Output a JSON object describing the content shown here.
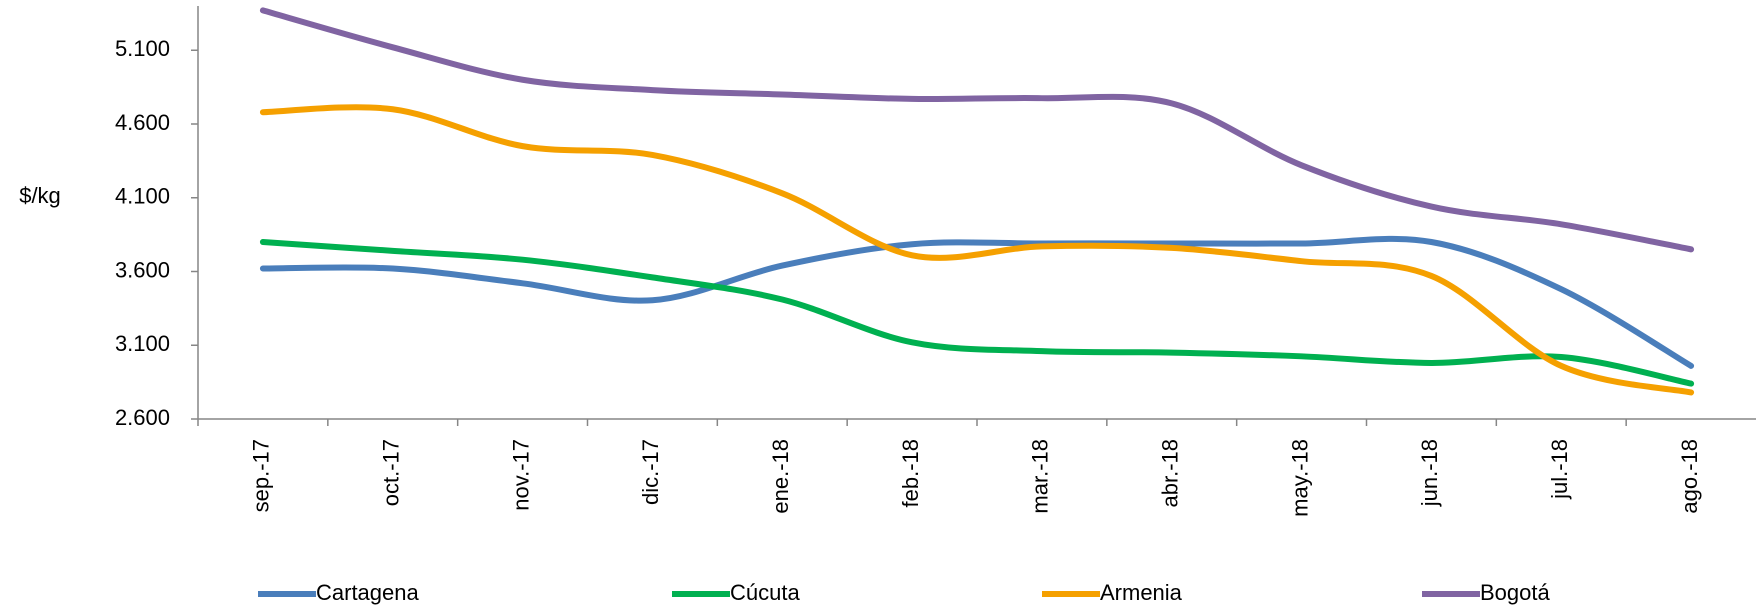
{
  "chart_data": {
    "type": "line",
    "y_label": "$/kg",
    "categories": [
      "sep.-17",
      "oct.-17",
      "nov.-17",
      "dic.-17",
      "ene.-18",
      "feb.-18",
      "mar.-18",
      "abr.-18",
      "may.-18",
      "jun.-18",
      "jul.-18",
      "ago.-18"
    ],
    "series": [
      {
        "name": "Cartagena",
        "color": "#4a7ebb",
        "values": [
          3620,
          3620,
          3520,
          3405,
          3640,
          3785,
          3790,
          3790,
          3790,
          3800,
          3480,
          2960
        ]
      },
      {
        "name": "Cúcuta",
        "color": "#00b050",
        "values": [
          3800,
          3740,
          3680,
          3560,
          3410,
          3120,
          3060,
          3050,
          3025,
          2980,
          3020,
          2840
        ]
      },
      {
        "name": "Armenia",
        "color": "#f5a000",
        "values": [
          4680,
          4700,
          4450,
          4390,
          4130,
          3710,
          3770,
          3760,
          3670,
          3570,
          2960,
          2780
        ]
      },
      {
        "name": "Bogotá",
        "color": "#8064a2",
        "values": [
          5370,
          5120,
          4900,
          4830,
          4800,
          4770,
          4775,
          4740,
          4320,
          4040,
          3920,
          3750
        ]
      }
    ],
    "ylim": [
      2600,
      5400
    ],
    "yticks": [
      {
        "value": 2600,
        "label": "2.600"
      },
      {
        "value": 3100,
        "label": "3.100"
      },
      {
        "value": 3600,
        "label": "3.600"
      },
      {
        "value": 4100,
        "label": "4.100"
      },
      {
        "value": 4600,
        "label": "4.600"
      },
      {
        "value": 5100,
        "label": "5.100"
      }
    ],
    "legend": "bottom"
  }
}
